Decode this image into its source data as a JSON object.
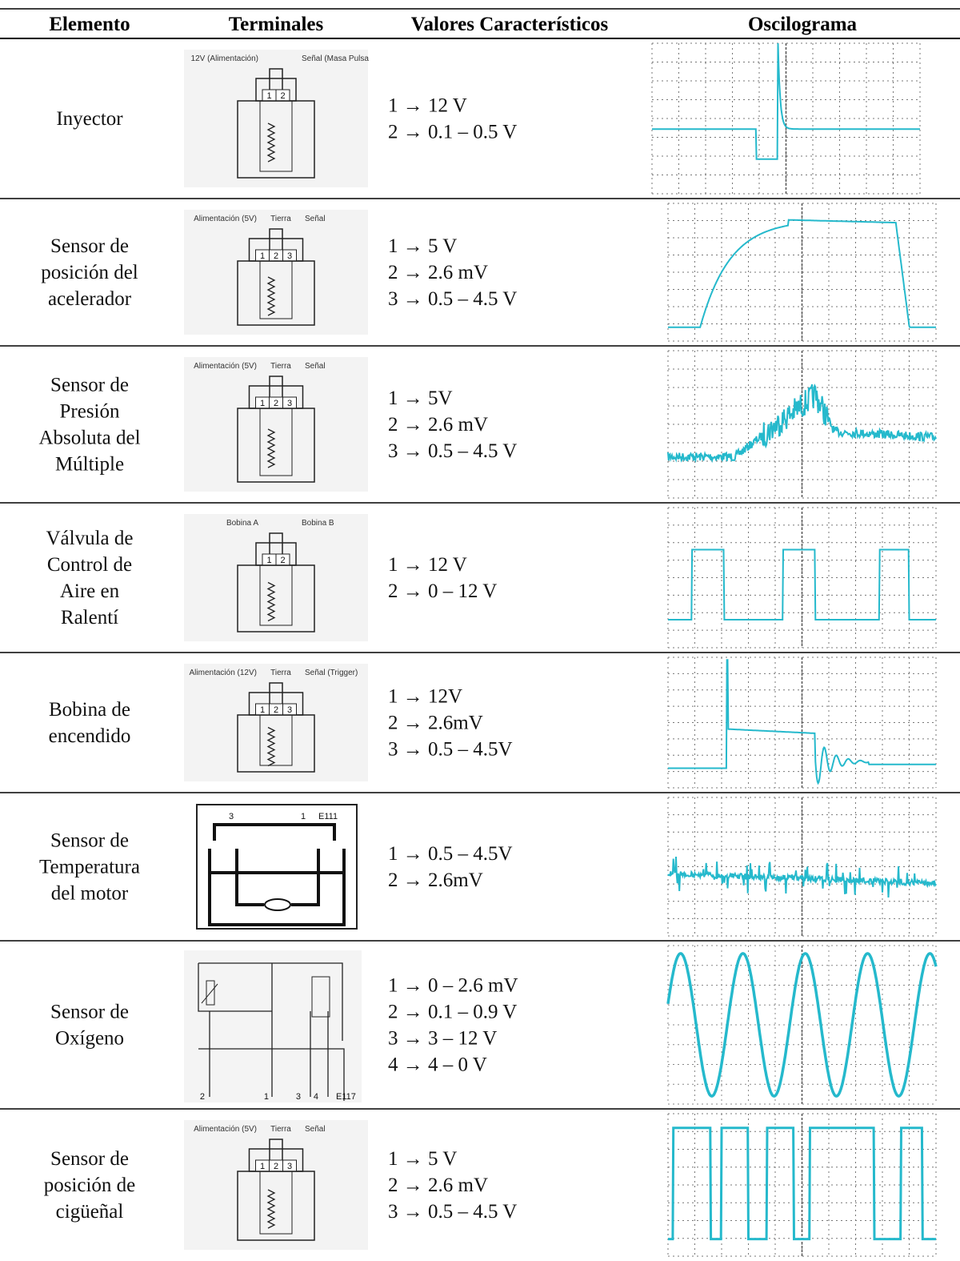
{
  "header": [
    "Elemento",
    "Terminales",
    "Valores Característicos",
    "Oscilograma"
  ],
  "rows": [
    {
      "element": [
        "Inyector"
      ],
      "terminal_labels": [
        "12V (Alimentación)",
        "Señal (Masa Pulsa"
      ],
      "pins": [
        "1",
        "2"
      ],
      "values": [
        "1 → 12 V",
        "2 → 0.1 – 0.5 V"
      ]
    },
    {
      "element": [
        "Sensor de",
        "posición del",
        "acelerador"
      ],
      "terminal_labels": [
        "Alimentación (5V)",
        "Tierra",
        "Señal"
      ],
      "pins": [
        "1",
        "2",
        "3"
      ],
      "values": [
        "1 → 5 V",
        "2 → 2.6 mV",
        "3 → 0.5 – 4.5 V"
      ]
    },
    {
      "element": [
        "Sensor de",
        "Presión",
        "Absoluta del",
        "Múltiple"
      ],
      "terminal_labels": [
        "Alimentación (5V)",
        "Tierra",
        "Señal"
      ],
      "pins": [
        "1",
        "2",
        "3"
      ],
      "values": [
        "1 → 5V",
        "2 → 2.6 mV",
        "3 → 0.5 – 4.5 V"
      ]
    },
    {
      "element": [
        "Válvula de",
        "Control de",
        "Aire en",
        "Ralentí"
      ],
      "terminal_labels": [
        "Bobina A",
        "Bobina B"
      ],
      "pins": [
        "1",
        "2"
      ],
      "values": [
        "1 → 12 V",
        "2 → 0 – 12 V"
      ]
    },
    {
      "element": [
        "Bobina de",
        "encendido"
      ],
      "terminal_labels": [
        "Alimentación (12V)",
        "Tierra",
        "Señal (Trigger)"
      ],
      "pins": [
        "1",
        "2",
        "3"
      ],
      "values": [
        "1 → 12V",
        "2 → 2.6mV",
        "3 → 0.5 – 4.5V"
      ]
    },
    {
      "element": [
        "Sensor de",
        "Temperatura",
        "del motor"
      ],
      "pins": [
        "3",
        "1",
        "E111"
      ],
      "values": [
        "1 → 0.5 – 4.5V",
        "2 → 2.6mV"
      ]
    },
    {
      "element": [
        "Sensor de",
        "Oxígeno"
      ],
      "pins": [
        "2",
        "1",
        "3",
        "4",
        "E117"
      ],
      "values": [
        "1 → 0 – 2.6 mV",
        "2 → 0.1 – 0.9 V",
        "3 → 3 – 12 V",
        "4 → 4 – 0 V"
      ]
    },
    {
      "element": [
        "Sensor de",
        "posición de",
        "cigüeñal"
      ],
      "terminal_labels": [
        "Alimentación (5V)",
        "Tierra",
        "Señal"
      ],
      "pins": [
        "1",
        "2",
        "3"
      ],
      "values": [
        "1 → 5 V",
        "2 → 2.6 mV",
        "3 → 0.5 – 4.5 V"
      ]
    }
  ]
}
